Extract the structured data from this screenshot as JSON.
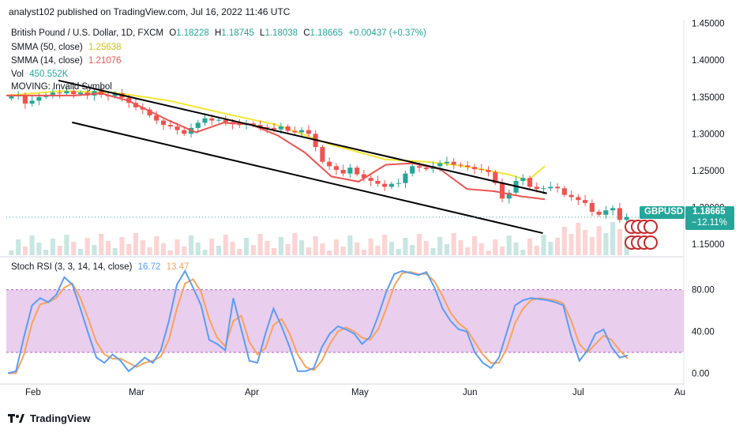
{
  "header": {
    "text": "analyst102 published on TradingView.com, Jul 16, 2022 11:46 UTC"
  },
  "legend": {
    "title": "British Pound / U.S. Dollar, 1D, FXCM",
    "o_label": "O",
    "o": "1.18228",
    "h_label": "H",
    "h": "1.18745",
    "l_label": "L",
    "l": "1.18038",
    "c_label": "C",
    "c": "1.18665",
    "change": "+0.00437 (+0.37%)",
    "sma50_label": "SMMA (50, close)",
    "sma50_value": "1.25638",
    "sma14_label": "SMMA (14, close)",
    "sma14_value": "1.21076",
    "vol_label": "Vol",
    "vol_value": "450.552K",
    "moving_label": "MOVING: Invalid Symbol",
    "stoch_label": "Stoch RSI (3, 3, 14, 14, close)",
    "stoch_k": "16.72",
    "stoch_d": "13.47"
  },
  "symbol_tag": {
    "symbol": "GBPUSD",
    "price": "1.18665",
    "change": "−12.11%"
  },
  "footer": {
    "brand": "TradingView"
  },
  "colors": {
    "up": "#26a69a",
    "down": "#ef5350",
    "sma50": "#f5e633",
    "sma14": "#ef5350",
    "stoch_k": "#5b9cf6",
    "stoch_d": "#f7a35c",
    "band": "#e1bee7",
    "tag": "#26a69a"
  },
  "chart_data": [
    {
      "type": "candlestick",
      "symbol": "GBPUSD",
      "yaxis_ticks": [
        "1.45000",
        "1.40000",
        "1.35000",
        "1.30000",
        "1.25000",
        "1.20000",
        "1.15000"
      ],
      "ylim": [
        1.135,
        1.455
      ],
      "xaxis_ticks": [
        "Feb",
        "Mar",
        "Apr",
        "May",
        "Jun",
        "Jul",
        "Au"
      ],
      "last_price": 1.18665,
      "channel_upper": [
        [
          1.3725,
          0.077
        ],
        [
          1.219,
          0.798
        ]
      ],
      "channel_lower": [
        [
          1.3155,
          0.097
        ],
        [
          1.165,
          0.792
        ]
      ],
      "sma50": [
        [
          1.352,
          0
        ],
        [
          1.358,
          0.08
        ],
        [
          1.356,
          0.16
        ],
        [
          1.345,
          0.24
        ],
        [
          1.328,
          0.32
        ],
        [
          1.312,
          0.4
        ],
        [
          1.285,
          0.48
        ],
        [
          1.265,
          0.56
        ],
        [
          1.262,
          0.62
        ],
        [
          1.258,
          0.66
        ],
        [
          1.252,
          0.7
        ],
        [
          1.245,
          0.74
        ],
        [
          1.237,
          0.77
        ],
        [
          1.256,
          0.795
        ]
      ],
      "sma14": [
        [
          1.352,
          0
        ],
        [
          1.352,
          0.1
        ],
        [
          1.355,
          0.14
        ],
        [
          1.345,
          0.18
        ],
        [
          1.318,
          0.24
        ],
        [
          1.302,
          0.28
        ],
        [
          1.315,
          0.32
        ],
        [
          1.313,
          0.36
        ],
        [
          1.298,
          0.4
        ],
        [
          1.275,
          0.44
        ],
        [
          1.242,
          0.48
        ],
        [
          1.235,
          0.52
        ],
        [
          1.258,
          0.56
        ],
        [
          1.26,
          0.6
        ],
        [
          1.252,
          0.64
        ],
        [
          1.225,
          0.68
        ],
        [
          1.222,
          0.72
        ],
        [
          1.215,
          0.76
        ],
        [
          1.211,
          0.795
        ]
      ],
      "candles": [
        1.351,
        1.352,
        1.341,
        1.345,
        1.35,
        1.353,
        1.356,
        1.355,
        1.358,
        1.354,
        1.356,
        1.352,
        1.358,
        1.353,
        1.351,
        1.355,
        1.349,
        1.342,
        1.336,
        1.333,
        1.325,
        1.318,
        1.312,
        1.31,
        1.305,
        1.3,
        1.308,
        1.315,
        1.321,
        1.318,
        1.319,
        1.316,
        1.313,
        1.312,
        1.314,
        1.312,
        1.309,
        1.308,
        1.306,
        1.31,
        1.304,
        1.302,
        1.305,
        1.3,
        1.282,
        1.262,
        1.256,
        1.251,
        1.246,
        1.254,
        1.245,
        1.24,
        1.236,
        1.232,
        1.228,
        1.232,
        1.233,
        1.246,
        1.256,
        1.254,
        1.252,
        1.256,
        1.26,
        1.262,
        1.258,
        1.257,
        1.255,
        1.252,
        1.251,
        1.248,
        1.233,
        1.212,
        1.22,
        1.236,
        1.24,
        1.228,
        1.225,
        1.226,
        1.228,
        1.226,
        1.217,
        1.214,
        1.21,
        1.206,
        1.194,
        1.19,
        1.196,
        1.199,
        1.183,
        1.187
      ]
    },
    {
      "type": "line",
      "name": "Stoch RSI",
      "yaxis_ticks": [
        "80.00",
        "40.00",
        "0.00"
      ],
      "ylim": [
        -8,
        110
      ],
      "band": [
        20,
        80
      ],
      "series": [
        {
          "name": "K",
          "values": [
            0,
            2,
            35,
            65,
            72,
            68,
            75,
            92,
            85,
            62,
            38,
            15,
            10,
            18,
            12,
            2,
            8,
            15,
            10,
            22,
            50,
            85,
            98,
            82,
            65,
            32,
            28,
            22,
            72,
            42,
            12,
            10,
            38,
            62,
            45,
            25,
            2,
            2,
            5,
            25,
            38,
            45,
            42,
            38,
            28,
            35,
            55,
            78,
            95,
            98,
            96,
            94,
            97,
            82,
            62,
            50,
            42,
            40,
            20,
            10,
            5,
            15,
            40,
            65,
            70,
            72,
            71,
            70,
            68,
            65,
            35,
            12,
            22,
            38,
            42,
            25,
            15,
            17
          ]
        },
        {
          "name": "D",
          "values": [
            0,
            0,
            18,
            48,
            66,
            68,
            72,
            82,
            86,
            72,
            52,
            30,
            18,
            14,
            14,
            10,
            6,
            10,
            12,
            16,
            32,
            62,
            86,
            90,
            78,
            52,
            34,
            26,
            50,
            55,
            30,
            18,
            24,
            46,
            52,
            38,
            18,
            6,
            3,
            12,
            28,
            40,
            44,
            40,
            34,
            32,
            42,
            62,
            84,
            96,
            97,
            95,
            95,
            88,
            74,
            58,
            48,
            42,
            30,
            18,
            10,
            10,
            24,
            48,
            62,
            70,
            72,
            71,
            70,
            67,
            50,
            28,
            20,
            28,
            36,
            32,
            22,
            14
          ]
        }
      ]
    }
  ]
}
